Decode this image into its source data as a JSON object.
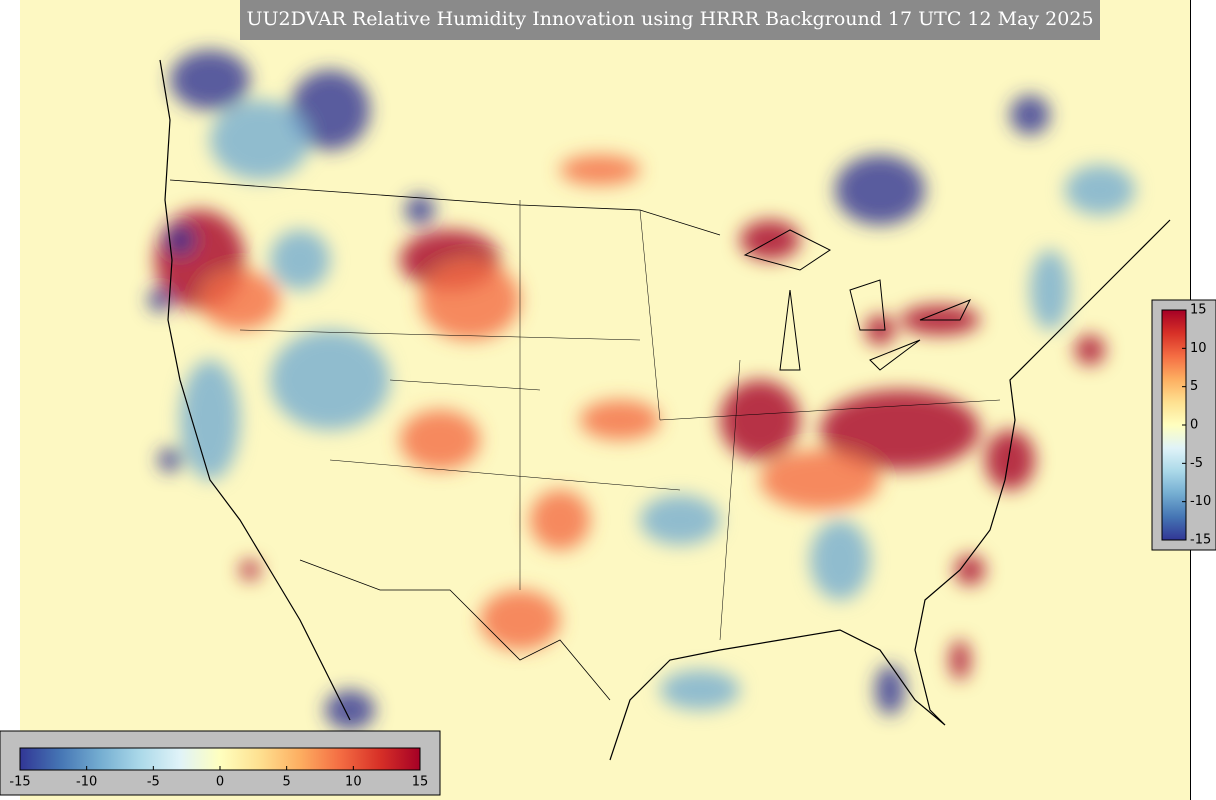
{
  "title": "UU2DVAR Relative Humidity Innovation using HRRR Background 17 UTC 12 May 2025",
  "colorbar": {
    "range": [
      -15,
      15
    ],
    "ticks": [
      -15,
      -10,
      -5,
      0,
      5,
      10,
      15
    ],
    "colors": [
      "#313695",
      "#4575b4",
      "#74add1",
      "#abd9e9",
      "#e0f3f8",
      "#ffffbf",
      "#fee090",
      "#fdae61",
      "#f46d43",
      "#d73027",
      "#a50026"
    ]
  }
}
